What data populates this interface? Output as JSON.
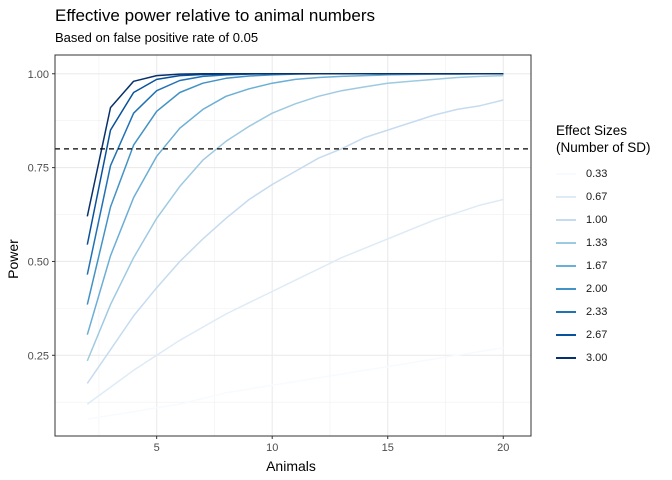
{
  "chart_data": {
    "type": "line",
    "title": "Effective power relative to animal numbers",
    "subtitle": "Based on false positive rate of  0.05",
    "xlabel": "Animals",
    "ylabel": "Power",
    "xlim": [
      0.6,
      21.2
    ],
    "ylim": [
      0.035,
      1.05
    ],
    "x_ticks": [
      5,
      10,
      15,
      20
    ],
    "y_ticks": [
      0.25,
      0.5,
      0.75,
      1.0
    ],
    "y_tick_labels": [
      "0.25",
      "0.50",
      "0.75",
      "1.00"
    ],
    "grid": true,
    "threshold": 0.8,
    "legend": {
      "title": "Effect Sizes\n(Number of SD)",
      "position": "right"
    },
    "x": [
      2,
      3,
      4,
      5,
      6,
      7,
      8,
      9,
      10,
      11,
      12,
      13,
      14,
      15,
      16,
      17,
      18,
      19,
      20
    ],
    "series": [
      {
        "name": "0.33",
        "color": "#f7fbff",
        "values": [
          0.08,
          0.09,
          0.1,
          0.11,
          0.12,
          0.135,
          0.15,
          0.16,
          0.17,
          0.18,
          0.19,
          0.2,
          0.21,
          0.22,
          0.23,
          0.24,
          0.25,
          0.26,
          0.27
        ]
      },
      {
        "name": "0.67",
        "color": "#deebf7",
        "values": [
          0.12,
          0.165,
          0.21,
          0.25,
          0.29,
          0.325,
          0.36,
          0.39,
          0.42,
          0.45,
          0.48,
          0.51,
          0.535,
          0.56,
          0.585,
          0.61,
          0.63,
          0.65,
          0.665
        ]
      },
      {
        "name": "1.00",
        "color": "#c6dbef",
        "values": [
          0.175,
          0.265,
          0.355,
          0.43,
          0.5,
          0.56,
          0.615,
          0.665,
          0.705,
          0.74,
          0.775,
          0.8,
          0.83,
          0.85,
          0.87,
          0.89,
          0.905,
          0.915,
          0.93
        ]
      },
      {
        "name": "1.33",
        "color": "#9ecae1",
        "values": [
          0.235,
          0.385,
          0.51,
          0.615,
          0.7,
          0.77,
          0.82,
          0.86,
          0.895,
          0.92,
          0.94,
          0.955,
          0.965,
          0.975,
          0.98,
          0.985,
          0.99,
          0.993,
          0.995
        ]
      },
      {
        "name": "1.67",
        "color": "#6baed6",
        "values": [
          0.305,
          0.515,
          0.67,
          0.78,
          0.855,
          0.905,
          0.94,
          0.96,
          0.975,
          0.985,
          0.99,
          0.993,
          0.995,
          0.997,
          0.998,
          0.999,
          0.999,
          1.0,
          1.0
        ]
      },
      {
        "name": "2.00",
        "color": "#4292c6",
        "values": [
          0.385,
          0.645,
          0.81,
          0.9,
          0.95,
          0.975,
          0.988,
          0.994,
          0.997,
          0.999,
          1.0,
          1.0,
          1.0,
          1.0,
          1.0,
          1.0,
          1.0,
          1.0,
          1.0
        ]
      },
      {
        "name": "2.33",
        "color": "#2171b5",
        "values": [
          0.465,
          0.755,
          0.895,
          0.955,
          0.982,
          0.993,
          0.997,
          0.999,
          1.0,
          1.0,
          1.0,
          1.0,
          1.0,
          1.0,
          1.0,
          1.0,
          1.0,
          1.0,
          1.0
        ]
      },
      {
        "name": "2.67",
        "color": "#08519c",
        "values": [
          0.545,
          0.85,
          0.95,
          0.985,
          0.995,
          0.998,
          0.999,
          1.0,
          1.0,
          1.0,
          1.0,
          1.0,
          1.0,
          1.0,
          1.0,
          1.0,
          1.0,
          1.0,
          1.0
        ]
      },
      {
        "name": "3.00",
        "color": "#08306b",
        "values": [
          0.62,
          0.91,
          0.98,
          0.995,
          0.999,
          1.0,
          1.0,
          1.0,
          1.0,
          1.0,
          1.0,
          1.0,
          1.0,
          1.0,
          1.0,
          1.0,
          1.0,
          1.0,
          1.0
        ]
      }
    ]
  }
}
